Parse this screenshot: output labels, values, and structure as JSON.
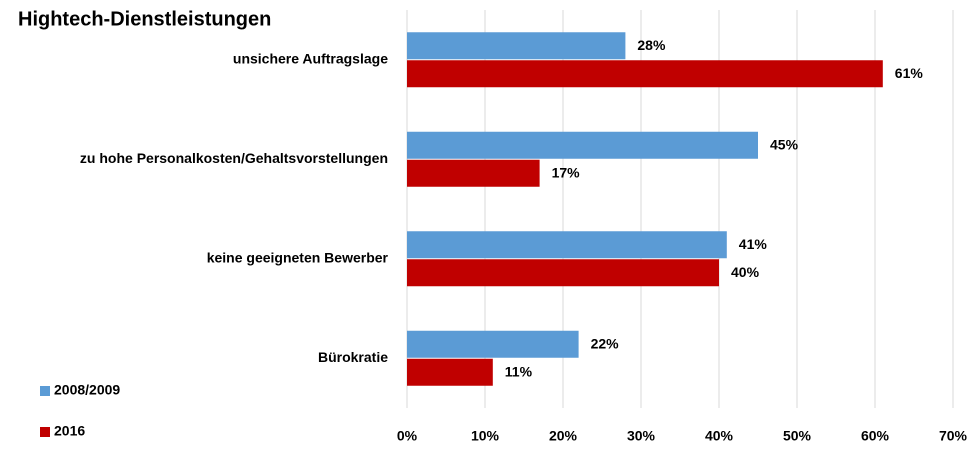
{
  "chart_data": {
    "type": "hbar",
    "title": "Hightech-Dienstleistungen",
    "categories": [
      "unsichere Auftragslage",
      "zu hohe Personalkosten/Gehaltsvorstellungen",
      "keine geeigneten Bewerber",
      "Bürokratie"
    ],
    "series": [
      {
        "name": "2008/2009",
        "color": "#5b9bd5",
        "values": [
          28,
          45,
          41,
          22
        ],
        "value_labels": [
          "28%",
          "45%",
          "41%",
          "22%"
        ]
      },
      {
        "name": "2016",
        "color": "#c00000",
        "values": [
          61,
          17,
          40,
          11
        ],
        "value_labels": [
          "61%",
          "17%",
          "40%",
          "11%"
        ]
      }
    ],
    "xlim": [
      0,
      70
    ],
    "xticks": [
      {
        "value": 0,
        "label": "0%"
      },
      {
        "value": 10,
        "label": "10%"
      },
      {
        "value": 20,
        "label": "20%"
      },
      {
        "value": 30,
        "label": "30%"
      },
      {
        "value": 40,
        "label": "40%"
      },
      {
        "value": 50,
        "label": "50%"
      },
      {
        "value": 60,
        "label": "60%"
      },
      {
        "value": 70,
        "label": "70%"
      }
    ],
    "grid": true,
    "legend": "lower left"
  }
}
